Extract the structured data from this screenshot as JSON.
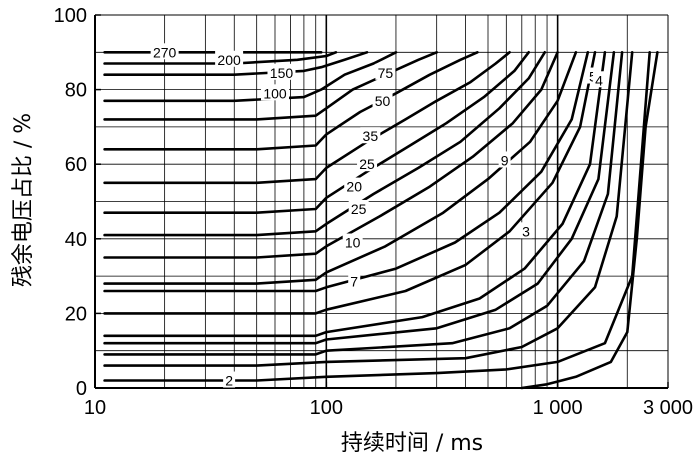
{
  "chart_data": {
    "type": "line",
    "title": "",
    "xlabel": "持续时间 / ms",
    "ylabel": "残余电压占比 / %",
    "x_scale": "log",
    "xlim": [
      10,
      3000
    ],
    "ylim": [
      0,
      100
    ],
    "x_ticks": [
      10,
      100,
      1000,
      3000
    ],
    "x_tick_labels": [
      "10",
      "100",
      "1 000",
      "3 000"
    ],
    "y_ticks": [
      0,
      20,
      40,
      60,
      80,
      100
    ],
    "y_tick_labels": [
      "0",
      "20",
      "40",
      "60",
      "80",
      "100"
    ],
    "grid": true,
    "legend": "none",
    "series": [
      {
        "name": "270",
        "points": [
          [
            11,
            90
          ],
          [
            30,
            90
          ],
          [
            50,
            90
          ],
          [
            80,
            90
          ],
          [
            95,
            90
          ]
        ]
      },
      {
        "name": "200",
        "points": [
          [
            11,
            87
          ],
          [
            40,
            87
          ],
          [
            75,
            88
          ],
          [
            100,
            89
          ],
          [
            110,
            90
          ]
        ]
      },
      {
        "name": "150",
        "points": [
          [
            11,
            84
          ],
          [
            40,
            84
          ],
          [
            80,
            85
          ],
          [
            95,
            86
          ],
          [
            120,
            88
          ],
          [
            150,
            90
          ]
        ]
      },
      {
        "name": "100",
        "points": [
          [
            11,
            77
          ],
          [
            40,
            77
          ],
          [
            80,
            78
          ],
          [
            95,
            80
          ],
          [
            120,
            84
          ],
          [
            160,
            87
          ],
          [
            200,
            90
          ]
        ]
      },
      {
        "name": "75",
        "points": [
          [
            11,
            72
          ],
          [
            50,
            72
          ],
          [
            90,
            73
          ],
          [
            100,
            75
          ],
          [
            130,
            80
          ],
          [
            180,
            84
          ],
          [
            250,
            88
          ],
          [
            300,
            90
          ]
        ]
      },
      {
        "name": "50",
        "points": [
          [
            11,
            64
          ],
          [
            50,
            64
          ],
          [
            90,
            65
          ],
          [
            100,
            68
          ],
          [
            140,
            74
          ],
          [
            200,
            79
          ],
          [
            280,
            84
          ],
          [
            380,
            88
          ],
          [
            450,
            90
          ]
        ]
      },
      {
        "name": "35",
        "points": [
          [
            11,
            55
          ],
          [
            50,
            55
          ],
          [
            90,
            56
          ],
          [
            100,
            59
          ],
          [
            150,
            66
          ],
          [
            220,
            72
          ],
          [
            300,
            77
          ],
          [
            420,
            82
          ],
          [
            540,
            87
          ],
          [
            620,
            90
          ]
        ]
      },
      {
        "name": "25",
        "points": [
          [
            11,
            47
          ],
          [
            50,
            47
          ],
          [
            90,
            48
          ],
          [
            100,
            51
          ],
          [
            150,
            58
          ],
          [
            230,
            65
          ],
          [
            330,
            71
          ],
          [
            480,
            78
          ],
          [
            650,
            85
          ],
          [
            750,
            90
          ]
        ]
      },
      {
        "name": "20",
        "points": [
          [
            11,
            41
          ],
          [
            50,
            41
          ],
          [
            90,
            42
          ],
          [
            100,
            44
          ],
          [
            160,
            52
          ],
          [
            250,
            59
          ],
          [
            380,
            66
          ],
          [
            560,
            75
          ],
          [
            750,
            83
          ],
          [
            880,
            90
          ]
        ]
      },
      {
        "name": "25",
        "points": [
          [
            11,
            35
          ],
          [
            50,
            35
          ],
          [
            90,
            36
          ],
          [
            100,
            38
          ],
          [
            170,
            46
          ],
          [
            280,
            54
          ],
          [
            430,
            62
          ],
          [
            640,
            71
          ],
          [
            850,
            80
          ],
          [
            1000,
            90
          ]
        ]
      },
      {
        "name": "10",
        "points": [
          [
            11,
            28
          ],
          [
            50,
            28
          ],
          [
            90,
            29
          ],
          [
            100,
            31
          ],
          [
            180,
            38
          ],
          [
            320,
            47
          ],
          [
            500,
            56
          ],
          [
            760,
            66
          ],
          [
            1000,
            77
          ],
          [
            1200,
            90
          ]
        ]
      },
      {
        "name": "7",
        "points": [
          [
            11,
            26
          ],
          [
            50,
            26
          ],
          [
            90,
            26
          ],
          [
            100,
            27
          ],
          [
            200,
            32
          ],
          [
            360,
            39
          ],
          [
            560,
            47
          ],
          [
            850,
            58
          ],
          [
            1150,
            72
          ],
          [
            1350,
            90
          ]
        ]
      },
      {
        "name": "9",
        "points": [
          [
            11,
            20
          ],
          [
            50,
            20
          ],
          [
            90,
            20
          ],
          [
            100,
            21
          ],
          [
            220,
            26
          ],
          [
            400,
            33
          ],
          [
            620,
            42
          ],
          [
            950,
            55
          ],
          [
            1250,
            70
          ],
          [
            1450,
            90
          ]
        ]
      },
      {
        "name": "3",
        "points": [
          [
            11,
            14
          ],
          [
            50,
            14
          ],
          [
            90,
            14
          ],
          [
            100,
            15
          ],
          [
            260,
            19
          ],
          [
            460,
            24
          ],
          [
            720,
            32
          ],
          [
            1050,
            44
          ],
          [
            1380,
            60
          ],
          [
            1600,
            90
          ]
        ]
      },
      {
        "name": "5",
        "points": [
          [
            11,
            12
          ],
          [
            50,
            12
          ],
          [
            90,
            12
          ],
          [
            100,
            13
          ],
          [
            300,
            16
          ],
          [
            540,
            21
          ],
          [
            820,
            28
          ],
          [
            1150,
            40
          ],
          [
            1500,
            56
          ],
          [
            1750,
            90
          ]
        ]
      },
      {
        "name": "4",
        "points": [
          [
            11,
            9
          ],
          [
            50,
            9
          ],
          [
            90,
            9
          ],
          [
            100,
            10
          ],
          [
            350,
            12
          ],
          [
            620,
            16
          ],
          [
            900,
            22
          ],
          [
            1300,
            34
          ],
          [
            1650,
            52
          ],
          [
            1900,
            90
          ]
        ]
      },
      {
        "name": "",
        "points": [
          [
            11,
            6
          ],
          [
            50,
            6
          ],
          [
            100,
            7
          ],
          [
            400,
            8
          ],
          [
            700,
            11
          ],
          [
            1000,
            16
          ],
          [
            1450,
            27
          ],
          [
            1800,
            46
          ],
          [
            2100,
            90
          ]
        ]
      },
      {
        "name": "2",
        "points": [
          [
            11,
            2
          ],
          [
            50,
            2
          ],
          [
            100,
            3
          ],
          [
            300,
            4
          ],
          [
            600,
            5
          ],
          [
            1000,
            7
          ],
          [
            1600,
            12
          ],
          [
            2100,
            30
          ],
          [
            2500,
            90
          ]
        ]
      },
      {
        "name": "",
        "points": [
          [
            700,
            0
          ],
          [
            900,
            1
          ],
          [
            1200,
            3
          ],
          [
            1700,
            7
          ],
          [
            2000,
            15
          ],
          [
            2200,
            40
          ],
          [
            2400,
            70
          ],
          [
            2700,
            90
          ]
        ]
      }
    ],
    "curve_labels": [
      {
        "text": "270",
        "x": 20,
        "y": 90
      },
      {
        "text": "200",
        "x": 38,
        "y": 88
      },
      {
        "text": "150",
        "x": 64,
        "y": 84.5
      },
      {
        "text": "100",
        "x": 60,
        "y": 79
      },
      {
        "text": "75",
        "x": 180,
        "y": 84.5
      },
      {
        "text": "50",
        "x": 175,
        "y": 77
      },
      {
        "text": "35",
        "x": 155,
        "y": 67.5
      },
      {
        "text": "25",
        "x": 150,
        "y": 60
      },
      {
        "text": "20",
        "x": 132,
        "y": 54
      },
      {
        "text": "25",
        "x": 138,
        "y": 48
      },
      {
        "text": "10",
        "x": 130,
        "y": 39
      },
      {
        "text": "7",
        "x": 132,
        "y": 28.5
      },
      {
        "text": "9",
        "x": 590,
        "y": 61
      },
      {
        "text": "3",
        "x": 730,
        "y": 42
      },
      {
        "text": "5",
        "x": 1420,
        "y": 83.5
      },
      {
        "text": "4",
        "x": 1510,
        "y": 82.5
      },
      {
        "text": "2",
        "x": 38,
        "y": 2
      }
    ]
  }
}
